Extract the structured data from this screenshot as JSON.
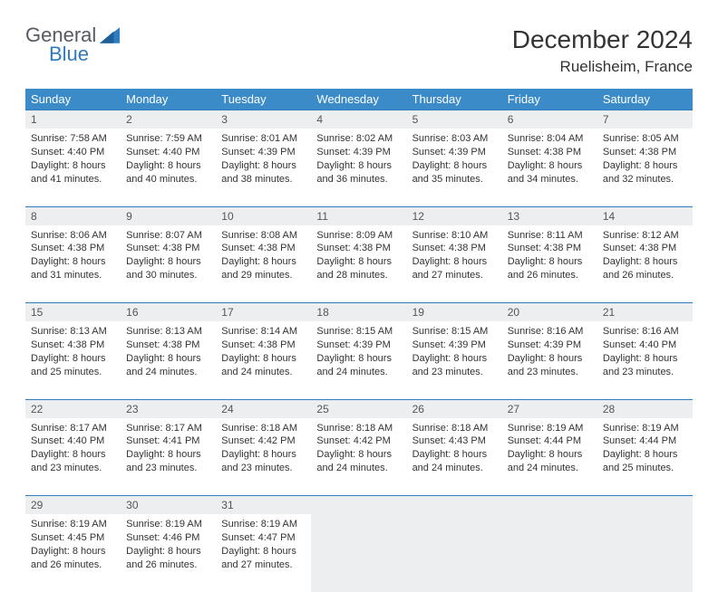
{
  "brand": {
    "general": "General",
    "blue": "Blue"
  },
  "title": "December 2024",
  "location": "Ruelisheim, France",
  "colors": {
    "header_bg": "#3b8bc9",
    "row_divider": "#2f7bbf",
    "daynum_bg": "#eceeef",
    "text": "#333333"
  },
  "day_headers": [
    "Sunday",
    "Monday",
    "Tuesday",
    "Wednesday",
    "Thursday",
    "Friday",
    "Saturday"
  ],
  "weeks": [
    [
      {
        "n": "1",
        "sunrise": "Sunrise: 7:58 AM",
        "sunset": "Sunset: 4:40 PM",
        "daylight": "Daylight: 8 hours and 41 minutes."
      },
      {
        "n": "2",
        "sunrise": "Sunrise: 7:59 AM",
        "sunset": "Sunset: 4:40 PM",
        "daylight": "Daylight: 8 hours and 40 minutes."
      },
      {
        "n": "3",
        "sunrise": "Sunrise: 8:01 AM",
        "sunset": "Sunset: 4:39 PM",
        "daylight": "Daylight: 8 hours and 38 minutes."
      },
      {
        "n": "4",
        "sunrise": "Sunrise: 8:02 AM",
        "sunset": "Sunset: 4:39 PM",
        "daylight": "Daylight: 8 hours and 36 minutes."
      },
      {
        "n": "5",
        "sunrise": "Sunrise: 8:03 AM",
        "sunset": "Sunset: 4:39 PM",
        "daylight": "Daylight: 8 hours and 35 minutes."
      },
      {
        "n": "6",
        "sunrise": "Sunrise: 8:04 AM",
        "sunset": "Sunset: 4:38 PM",
        "daylight": "Daylight: 8 hours and 34 minutes."
      },
      {
        "n": "7",
        "sunrise": "Sunrise: 8:05 AM",
        "sunset": "Sunset: 4:38 PM",
        "daylight": "Daylight: 8 hours and 32 minutes."
      }
    ],
    [
      {
        "n": "8",
        "sunrise": "Sunrise: 8:06 AM",
        "sunset": "Sunset: 4:38 PM",
        "daylight": "Daylight: 8 hours and 31 minutes."
      },
      {
        "n": "9",
        "sunrise": "Sunrise: 8:07 AM",
        "sunset": "Sunset: 4:38 PM",
        "daylight": "Daylight: 8 hours and 30 minutes."
      },
      {
        "n": "10",
        "sunrise": "Sunrise: 8:08 AM",
        "sunset": "Sunset: 4:38 PM",
        "daylight": "Daylight: 8 hours and 29 minutes."
      },
      {
        "n": "11",
        "sunrise": "Sunrise: 8:09 AM",
        "sunset": "Sunset: 4:38 PM",
        "daylight": "Daylight: 8 hours and 28 minutes."
      },
      {
        "n": "12",
        "sunrise": "Sunrise: 8:10 AM",
        "sunset": "Sunset: 4:38 PM",
        "daylight": "Daylight: 8 hours and 27 minutes."
      },
      {
        "n": "13",
        "sunrise": "Sunrise: 8:11 AM",
        "sunset": "Sunset: 4:38 PM",
        "daylight": "Daylight: 8 hours and 26 minutes."
      },
      {
        "n": "14",
        "sunrise": "Sunrise: 8:12 AM",
        "sunset": "Sunset: 4:38 PM",
        "daylight": "Daylight: 8 hours and 26 minutes."
      }
    ],
    [
      {
        "n": "15",
        "sunrise": "Sunrise: 8:13 AM",
        "sunset": "Sunset: 4:38 PM",
        "daylight": "Daylight: 8 hours and 25 minutes."
      },
      {
        "n": "16",
        "sunrise": "Sunrise: 8:13 AM",
        "sunset": "Sunset: 4:38 PM",
        "daylight": "Daylight: 8 hours and 24 minutes."
      },
      {
        "n": "17",
        "sunrise": "Sunrise: 8:14 AM",
        "sunset": "Sunset: 4:38 PM",
        "daylight": "Daylight: 8 hours and 24 minutes."
      },
      {
        "n": "18",
        "sunrise": "Sunrise: 8:15 AM",
        "sunset": "Sunset: 4:39 PM",
        "daylight": "Daylight: 8 hours and 24 minutes."
      },
      {
        "n": "19",
        "sunrise": "Sunrise: 8:15 AM",
        "sunset": "Sunset: 4:39 PM",
        "daylight": "Daylight: 8 hours and 23 minutes."
      },
      {
        "n": "20",
        "sunrise": "Sunrise: 8:16 AM",
        "sunset": "Sunset: 4:39 PM",
        "daylight": "Daylight: 8 hours and 23 minutes."
      },
      {
        "n": "21",
        "sunrise": "Sunrise: 8:16 AM",
        "sunset": "Sunset: 4:40 PM",
        "daylight": "Daylight: 8 hours and 23 minutes."
      }
    ],
    [
      {
        "n": "22",
        "sunrise": "Sunrise: 8:17 AM",
        "sunset": "Sunset: 4:40 PM",
        "daylight": "Daylight: 8 hours and 23 minutes."
      },
      {
        "n": "23",
        "sunrise": "Sunrise: 8:17 AM",
        "sunset": "Sunset: 4:41 PM",
        "daylight": "Daylight: 8 hours and 23 minutes."
      },
      {
        "n": "24",
        "sunrise": "Sunrise: 8:18 AM",
        "sunset": "Sunset: 4:42 PM",
        "daylight": "Daylight: 8 hours and 23 minutes."
      },
      {
        "n": "25",
        "sunrise": "Sunrise: 8:18 AM",
        "sunset": "Sunset: 4:42 PM",
        "daylight": "Daylight: 8 hours and 24 minutes."
      },
      {
        "n": "26",
        "sunrise": "Sunrise: 8:18 AM",
        "sunset": "Sunset: 4:43 PM",
        "daylight": "Daylight: 8 hours and 24 minutes."
      },
      {
        "n": "27",
        "sunrise": "Sunrise: 8:19 AM",
        "sunset": "Sunset: 4:44 PM",
        "daylight": "Daylight: 8 hours and 24 minutes."
      },
      {
        "n": "28",
        "sunrise": "Sunrise: 8:19 AM",
        "sunset": "Sunset: 4:44 PM",
        "daylight": "Daylight: 8 hours and 25 minutes."
      }
    ],
    [
      {
        "n": "29",
        "sunrise": "Sunrise: 8:19 AM",
        "sunset": "Sunset: 4:45 PM",
        "daylight": "Daylight: 8 hours and 26 minutes."
      },
      {
        "n": "30",
        "sunrise": "Sunrise: 8:19 AM",
        "sunset": "Sunset: 4:46 PM",
        "daylight": "Daylight: 8 hours and 26 minutes."
      },
      {
        "n": "31",
        "sunrise": "Sunrise: 8:19 AM",
        "sunset": "Sunset: 4:47 PM",
        "daylight": "Daylight: 8 hours and 27 minutes."
      }
    ]
  ]
}
